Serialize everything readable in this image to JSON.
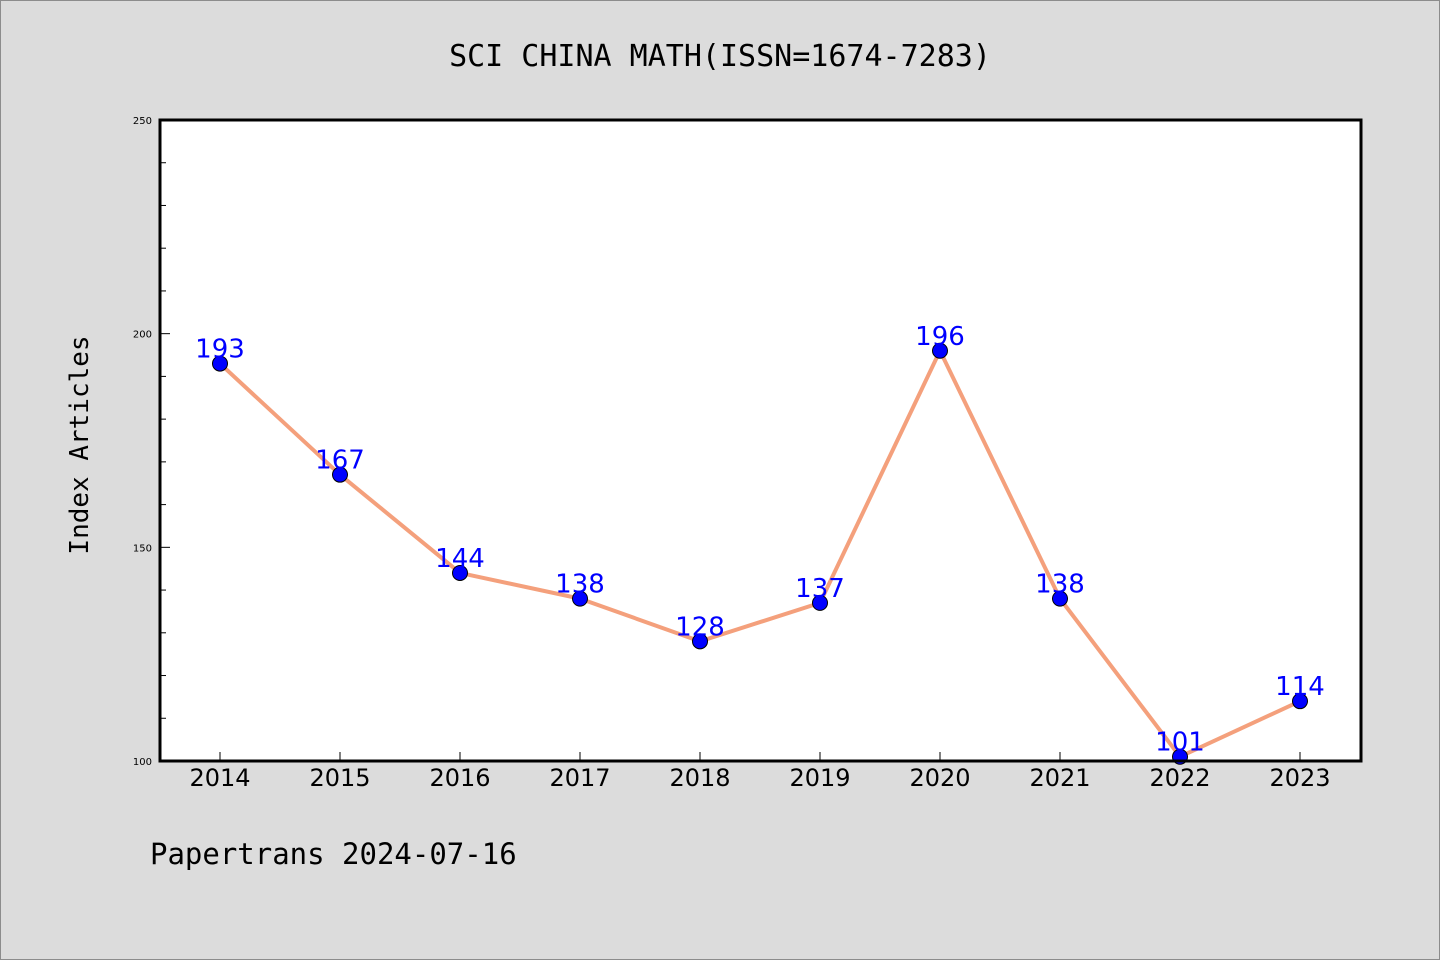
{
  "chart_data": {
    "type": "line",
    "title": "SCI CHINA MATH(ISSN=1674-7283)",
    "xlabel": "",
    "ylabel": "Index Articles",
    "categories": [
      "2014",
      "2015",
      "2016",
      "2017",
      "2018",
      "2019",
      "2020",
      "2021",
      "2022",
      "2023"
    ],
    "values": [
      193,
      167,
      144,
      138,
      128,
      137,
      196,
      138,
      101,
      114
    ],
    "data_labels": [
      "193",
      "167",
      "144",
      "138",
      "128",
      "137",
      "196",
      "138",
      "101",
      "114"
    ],
    "ylim": [
      100,
      250
    ],
    "yticks": [
      100,
      150,
      200,
      250
    ],
    "ytick_labels": [
      "100",
      "150",
      "200",
      "250"
    ],
    "grid": false,
    "colors": {
      "line": "#f4a07c",
      "marker": "#0000ff",
      "label": "#0000ff",
      "background": "#dcdcdc",
      "plot_background": "#ffffff"
    }
  },
  "footer": {
    "text": "Papertrans 2024-07-16"
  }
}
